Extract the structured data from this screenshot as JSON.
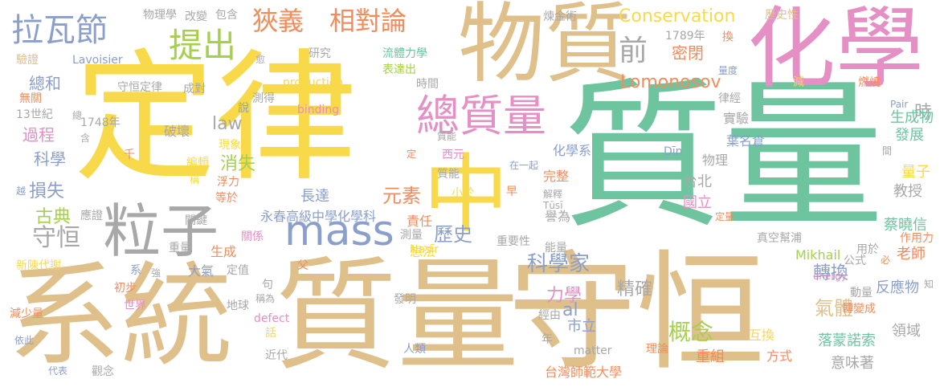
{
  "words": [
    {
      "text": "質量",
      "color": "#6fc4a0"
    },
    {
      "text": "定律",
      "color": "#f8d94a"
    },
    {
      "text": "系統",
      "color": "#dfbf8a"
    },
    {
      "text": "質量",
      "color": "#dfbf8a"
    },
    {
      "text": "守恒",
      "color": "#dfbf8a"
    },
    {
      "text": "化學",
      "color": "#e58fc4"
    },
    {
      "text": "物質",
      "color": "#dfbf8a"
    },
    {
      "text": "中",
      "color": "#f8d94a"
    },
    {
      "text": "粒子",
      "color": "#a8a8a8"
    },
    {
      "text": "mass",
      "color": "#8a9fcc"
    },
    {
      "text": "總質量",
      "color": "#e58fc4"
    },
    {
      "text": "狹義",
      "color": "#f28c5c"
    },
    {
      "text": "相對論",
      "color": "#f28c5c"
    },
    {
      "text": "提出",
      "color": "#a6cf4f"
    },
    {
      "text": "拉瓦節",
      "color": "#8a9fcc"
    },
    {
      "text": "前",
      "color": "#a8a8a8"
    },
    {
      "text": "Conservation",
      "color": "#f8d94a"
    },
    {
      "text": "Lomonosov",
      "color": "#f28c5c"
    },
    {
      "text": "守恒",
      "color": "#a8a8a8"
    },
    {
      "text": "古典",
      "color": "#a6cf4f"
    },
    {
      "text": "歷史",
      "color": "#8a9fcc"
    },
    {
      "text": "科學家",
      "color": "#8a9fcc"
    },
    {
      "text": "元素",
      "color": "#f28c5c"
    },
    {
      "text": "概念",
      "color": "#a6cf4f"
    },
    {
      "text": "氣體",
      "color": "#dfbf8a"
    },
    {
      "text": "轉換",
      "color": "#8a9fcc"
    },
    {
      "text": "精確",
      "color": "#a8a8a8"
    },
    {
      "text": "力學",
      "color": "#e58fc4"
    },
    {
      "text": "消失",
      "color": "#a6cf4f"
    },
    {
      "text": "損失",
      "color": "#8a9fcc"
    },
    {
      "text": "總和",
      "color": "#8a9fcc"
    },
    {
      "text": "過程",
      "color": "#e58fc4"
    },
    {
      "text": "科學",
      "color": "#8a9fcc"
    },
    {
      "text": "law",
      "color": "#a8a8a8"
    },
    {
      "text": "密閉",
      "color": "#f28c5c"
    },
    {
      "text": "時",
      "color": "#a8a8a8"
    },
    {
      "text": "生成物",
      "color": "#6fc4a0"
    },
    {
      "text": "al",
      "color": "#8a9fcc"
    },
    {
      "text": "市立",
      "color": "#8a9fcc"
    },
    {
      "text": "台北",
      "color": "#a8a8a8"
    },
    {
      "text": "國立",
      "color": "#e58fc4"
    },
    {
      "text": "蔡曉信",
      "color": "#6fc4a0"
    },
    {
      "text": "發展",
      "color": "#6fc4a0"
    },
    {
      "text": "教授",
      "color": "#a8a8a8"
    },
    {
      "text": "量子",
      "color": "#f8d94a"
    },
    {
      "text": "老師",
      "color": "#f28c5c"
    },
    {
      "text": "反應物",
      "color": "#8a9fcc"
    },
    {
      "text": "領域",
      "color": "#a8a8a8"
    },
    {
      "text": "落蒙諾索",
      "color": "#6fc4a0"
    },
    {
      "text": "意味著",
      "color": "#a8a8a8"
    },
    {
      "text": "重組",
      "color": "#f28c5c"
    },
    {
      "text": "方式",
      "color": "#f28c5c"
    },
    {
      "text": "互換",
      "color": "#f8d94a"
    },
    {
      "text": "台灣師範大學",
      "color": "#f28c5c"
    },
    {
      "text": "永春高級中學化學科",
      "color": "#8a9fcc"
    },
    {
      "text": "責任",
      "color": "#f28c5c"
    },
    {
      "text": "長達",
      "color": "#8a9fcc"
    },
    {
      "text": "實驗",
      "color": "#a8a8a8"
    },
    {
      "text": "葉名倉",
      "color": "#8a9fcc"
    },
    {
      "text": "物理",
      "color": "#a8a8a8"
    },
    {
      "text": "化學系",
      "color": "#8a9fcc"
    },
    {
      "text": "完整",
      "color": "#f28c5c"
    },
    {
      "text": "譽為",
      "color": "#a8a8a8"
    },
    {
      "text": "重要性",
      "color": "#a8a8a8"
    },
    {
      "text": "想法",
      "color": "#f8d94a"
    },
    {
      "text": "Mikhail",
      "color": "#a6cf4f"
    },
    {
      "text": "時間",
      "color": "#a8a8a8"
    },
    {
      "text": "表達出",
      "color": "#a6cf4f"
    },
    {
      "text": "流體力學",
      "color": "#6fc4a0"
    },
    {
      "text": "研究",
      "color": "#a8a8a8"
    },
    {
      "text": "Lavoisier",
      "color": "#8a9fcc"
    },
    {
      "text": "驗證",
      "color": "#dfbf8a"
    },
    {
      "text": "物理學",
      "color": "#a8a8a8"
    },
    {
      "text": "改變",
      "color": "#a8a8a8"
    },
    {
      "text": "包含",
      "color": "#a8a8a8"
    },
    {
      "text": "煉金術",
      "color": "#a8a8a8"
    },
    {
      "text": "1789年",
      "color": "#a8a8a8"
    },
    {
      "text": "歷史性",
      "color": "#dfbf8a"
    },
    {
      "text": "守恒定律",
      "color": "#a8a8a8"
    },
    {
      "text": "成對",
      "color": "#a8a8a8"
    },
    {
      "text": "production",
      "color": "#f8d94a"
    },
    {
      "text": "無關",
      "color": "#f28c5c"
    },
    {
      "text": "13世紀",
      "color": "#a8a8a8"
    },
    {
      "text": "1748年",
      "color": "#a8a8a8"
    },
    {
      "text": "binding",
      "color": "#e58fc4"
    },
    {
      "text": "測得",
      "color": "#a8a8a8"
    },
    {
      "text": "破壞",
      "color": "#a8a8a8"
    },
    {
      "text": "現象",
      "color": "#f8d94a"
    },
    {
      "text": "編輯",
      "color": "#f8d94a"
    },
    {
      "text": "浮力",
      "color": "#f28c5c"
    },
    {
      "text": "等於",
      "color": "#f28c5c"
    },
    {
      "text": "應證",
      "color": "#a8a8a8"
    },
    {
      "text": "關鍵",
      "color": "#a8a8a8"
    },
    {
      "text": "重量",
      "color": "#a8a8a8"
    },
    {
      "text": "新陳代謝",
      "color": "#f8d94a"
    },
    {
      "text": "關係",
      "color": "#e58fc4"
    },
    {
      "text": "生成",
      "color": "#f28c5c"
    },
    {
      "text": "大氣",
      "color": "#8a9fcc"
    },
    {
      "text": "定值",
      "color": "#a8a8a8"
    },
    {
      "text": "初步",
      "color": "#f28c5c"
    },
    {
      "text": "世界",
      "color": "#e58fc4"
    },
    {
      "text": "減少量",
      "color": "#f28c5c"
    },
    {
      "text": "依此",
      "color": "#8a9fcc"
    },
    {
      "text": "地球",
      "color": "#a8a8a8"
    },
    {
      "text": "defect",
      "color": "#e58fc4"
    },
    {
      "text": "近代",
      "color": "#a8a8a8"
    },
    {
      "text": "代表",
      "color": "#8a9fcc"
    },
    {
      "text": "觀念",
      "color": "#a8a8a8"
    },
    {
      "text": "發明",
      "color": "#a8a8a8"
    },
    {
      "text": "人類",
      "color": "#8a9fcc"
    },
    {
      "text": "經由",
      "color": "#a8a8a8"
    },
    {
      "text": "理論",
      "color": "#f28c5c"
    },
    {
      "text": "matter",
      "color": "#a8a8a8"
    },
    {
      "text": "真空幫浦",
      "color": "#a8a8a8"
    },
    {
      "text": "公式",
      "color": "#a8a8a8"
    },
    {
      "text": "用於",
      "color": "#a8a8a8"
    },
    {
      "text": "energy",
      "color": "#e58fc4"
    },
    {
      "text": "作用力",
      "color": "#f28c5c"
    },
    {
      "text": "轉變成",
      "color": "#f28c5c"
    },
    {
      "text": "動量",
      "color": "#a8a8a8"
    },
    {
      "text": "能量",
      "color": "#a8a8a8"
    },
    {
      "text": "測量",
      "color": "#a8a8a8"
    },
    {
      "text": "Nasīr",
      "color": "#f8d94a"
    },
    {
      "text": "小於",
      "color": "#f8d94a"
    },
    {
      "text": "早",
      "color": "#f28c5c"
    },
    {
      "text": "解釋",
      "color": "#a8a8a8"
    },
    {
      "text": "Tūsī",
      "color": "#a8a8a8"
    },
    {
      "text": "質能",
      "color": "#a8a8a8"
    },
    {
      "text": "在一起",
      "color": "#8a9fcc"
    },
    {
      "text": "西元",
      "color": "#e58fc4"
    },
    {
      "text": "Dīn",
      "color": "#8a9fcc"
    },
    {
      "text": "Pair",
      "color": "#8a9fcc"
    },
    {
      "text": "燃燒",
      "color": "#f28c5c"
    },
    {
      "text": "量度",
      "color": "#8a9fcc"
    },
    {
      "text": "減",
      "color": "#f8d94a"
    },
    {
      "text": "換",
      "color": "#f28c5c"
    },
    {
      "text": "律經",
      "color": "#a8a8a8"
    },
    {
      "text": "間",
      "color": "#a8a8a8"
    },
    {
      "text": "定量",
      "color": "#f28c5c"
    },
    {
      "text": "愈",
      "color": "#a8a8a8"
    },
    {
      "text": "說",
      "color": "#8a9fcc"
    },
    {
      "text": "總",
      "color": "#a8a8a8"
    },
    {
      "text": "含",
      "color": "#a8a8a8"
    },
    {
      "text": "千",
      "color": "#f28c5c"
    },
    {
      "text": "稱",
      "color": "#f8d94a"
    },
    {
      "text": "越",
      "color": "#8a9fcc"
    },
    {
      "text": "系",
      "color": "#8a9fcc"
    },
    {
      "text": "強",
      "color": "#a8a8a8"
    },
    {
      "text": "句",
      "color": "#a8a8a8"
    },
    {
      "text": "話",
      "color": "#f8d94a"
    },
    {
      "text": "父",
      "color": "#f28c5c"
    },
    {
      "text": "年",
      "color": "#a8a8a8"
    },
    {
      "text": "必",
      "color": "#f28c5c"
    },
    {
      "text": "知",
      "color": "#a8a8a8"
    },
    {
      "text": "稱為",
      "color": "#a8a8a8"
    },
    {
      "text": "定",
      "color": "#f28c5c"
    },
    {
      "text": "質能",
      "color": "#a8a8a8"
    }
  ]
}
